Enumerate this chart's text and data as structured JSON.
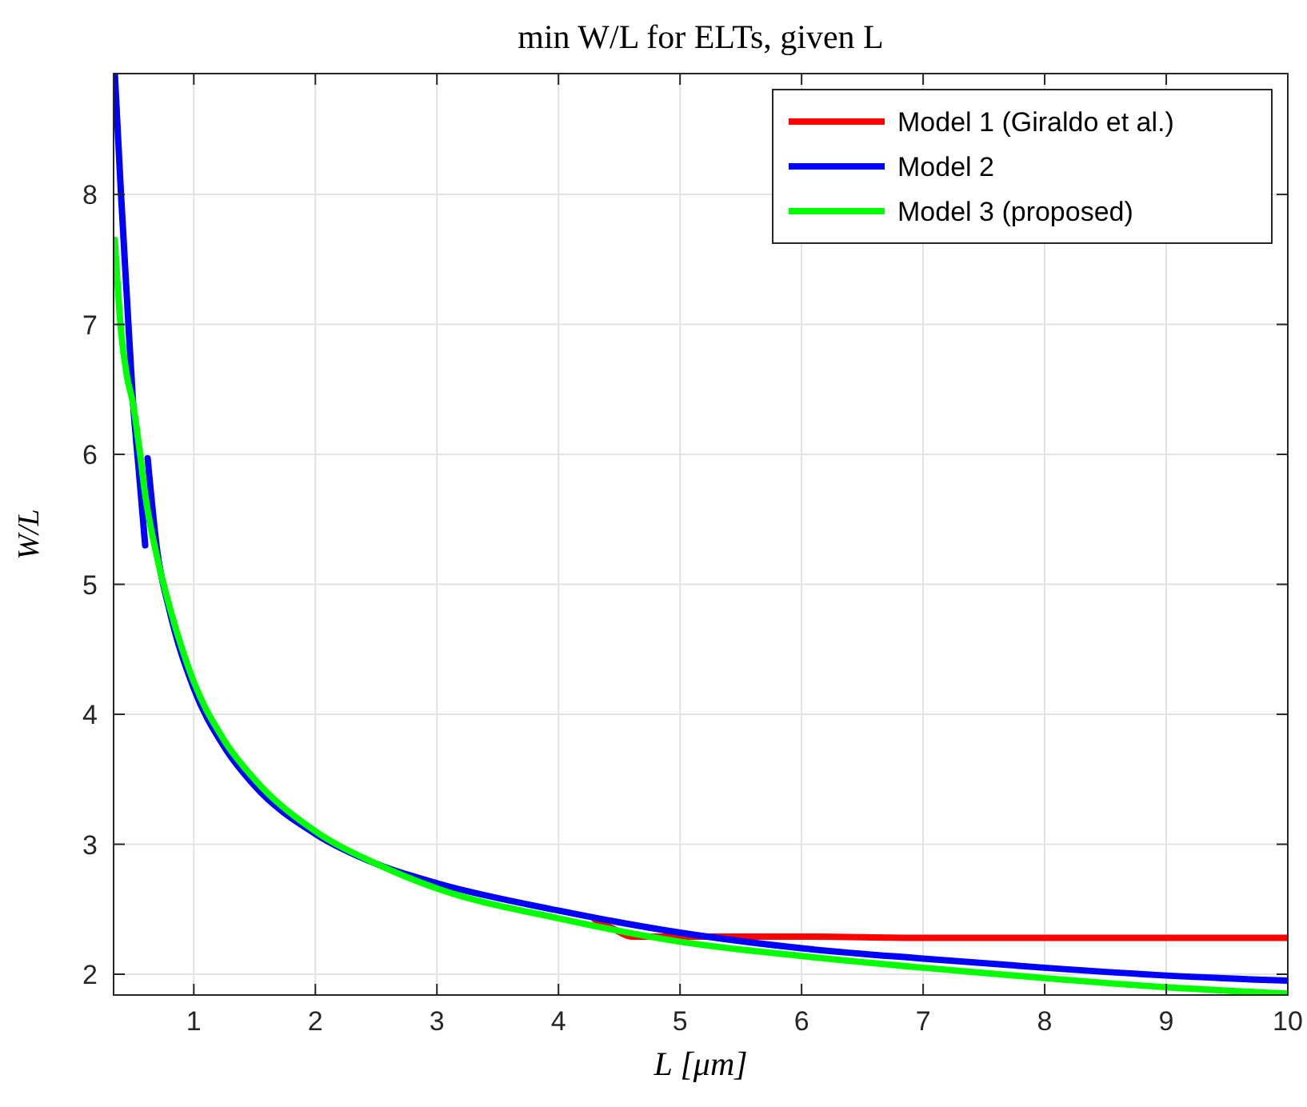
{
  "chart_data": {
    "type": "line",
    "title": "min W/L for ELTs, given L",
    "xlabel": "L  [μm]",
    "ylabel": "W/L",
    "xlim": [
      0.34,
      10
    ],
    "ylim": [
      1.84,
      8.93
    ],
    "xticks": [
      1,
      2,
      3,
      4,
      5,
      6,
      7,
      8,
      9,
      10
    ],
    "yticks": [
      2,
      3,
      4,
      5,
      6,
      7,
      8
    ],
    "grid": true,
    "legend": "top right",
    "line_style": "solid",
    "series": [
      {
        "name": "Model 1 (Giraldo et al.)",
        "color": "#ff0000",
        "x": [
          4.3,
          4.45,
          4.6,
          5,
          6,
          7,
          8,
          9,
          10
        ],
        "values": [
          2.42,
          2.35,
          2.29,
          2.29,
          2.29,
          2.28,
          2.28,
          2.28,
          2.28
        ]
      },
      {
        "name": "Model 2",
        "color": "#0000ff",
        "x": [
          0.35,
          0.4,
          0.45,
          0.5,
          0.55,
          0.6,
          0.61,
          0.62,
          0.7,
          0.8,
          1,
          1.25,
          1.5,
          2,
          2.5,
          3,
          4,
          5,
          6,
          7,
          8,
          9,
          10
        ],
        "values": [
          8.93,
          8.02,
          7.2,
          6.4,
          5.85,
          5.3,
          null,
          5.97,
          5.25,
          4.8,
          4.2,
          3.75,
          3.45,
          3.08,
          2.85,
          2.7,
          2.49,
          2.32,
          2.2,
          2.12,
          2.05,
          1.99,
          1.95
        ]
      },
      {
        "name": "Model 3 (proposed)",
        "color": "#00ff00",
        "x": [
          0.35,
          0.4,
          0.45,
          0.5,
          0.55,
          0.6,
          0.7,
          0.8,
          1,
          1.25,
          1.5,
          2,
          2.5,
          3,
          4,
          5,
          6,
          7,
          8,
          9,
          10
        ],
        "values": [
          7.65,
          6.96,
          6.6,
          6.39,
          6.06,
          5.69,
          5.2,
          4.83,
          4.25,
          3.8,
          3.5,
          3.1,
          2.85,
          2.66,
          2.43,
          2.25,
          2.14,
          2.05,
          1.97,
          1.9,
          1.85
        ]
      }
    ]
  }
}
